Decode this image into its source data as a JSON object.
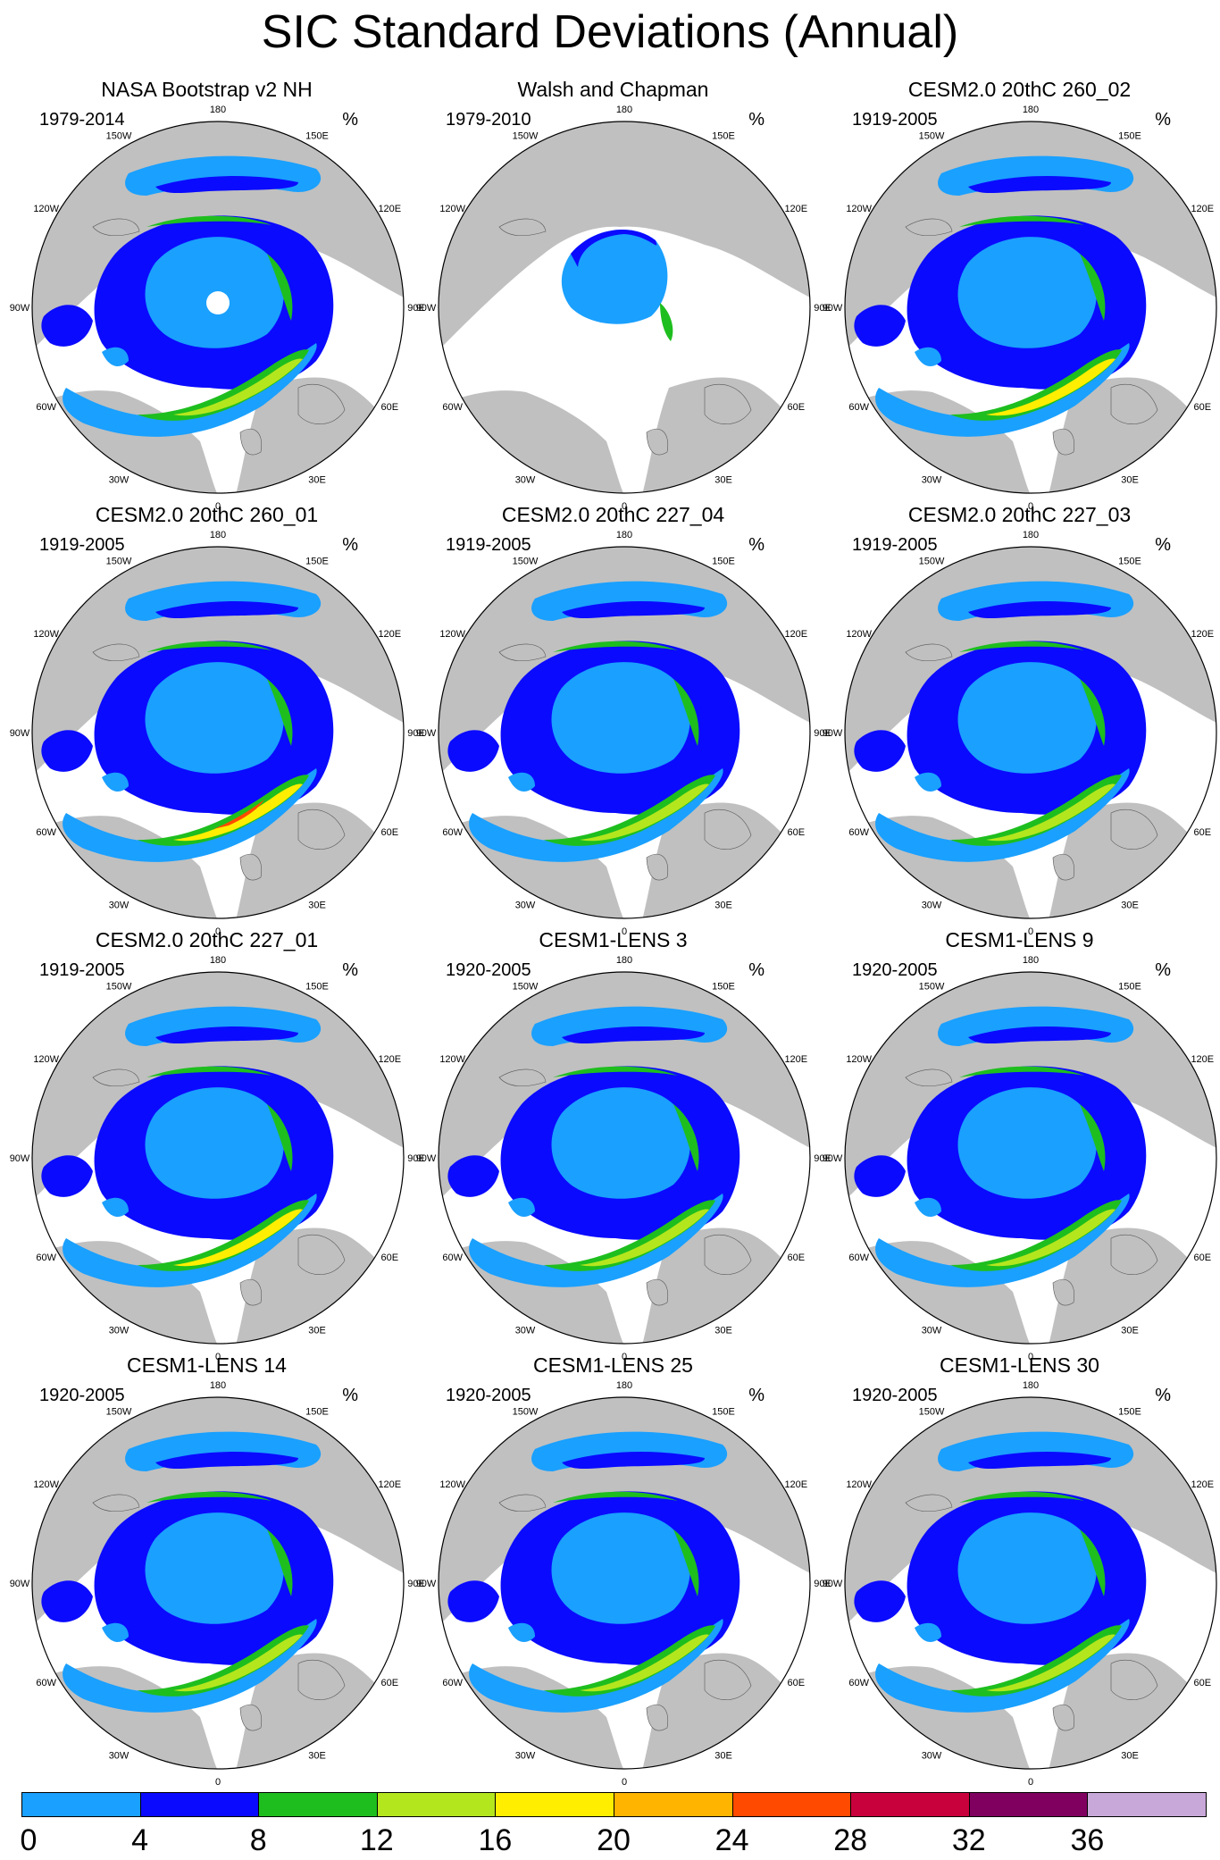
{
  "title": "SIC Standard Deviations (Annual)",
  "units_label": "%",
  "lon_labels": [
    "180",
    "150E",
    "120E",
    "90E",
    "60E",
    "30E",
    "0",
    "30W",
    "60W",
    "90W",
    "120W",
    "150W"
  ],
  "colors": {
    "land": "#c0c0c0",
    "ocean": "#ffffff",
    "bins": [
      "#1aa0ff",
      "#0a0aff",
      "#1ebe1e",
      "#b4e61e",
      "#ffee00",
      "#ffb400",
      "#ff4a00",
      "#c8003c",
      "#800060",
      "#c8a8d8"
    ]
  },
  "colorbar": {
    "ticks": [
      "0",
      "4",
      "8",
      "12",
      "16",
      "20",
      "24",
      "28",
      "32",
      "36"
    ]
  },
  "panels": [
    {
      "title": "NASA Bootstrap v2 NH",
      "period": "1979-2014",
      "pattern": "obs"
    },
    {
      "title": "Walsh and Chapman",
      "period": "1979-2010",
      "pattern": "walsh"
    },
    {
      "title": "CESM2.0 20thC 260_02",
      "period": "1919-2005",
      "pattern": "model-strong"
    },
    {
      "title": "CESM2.0 20thC 260_01",
      "period": "1919-2005",
      "pattern": "model-peak"
    },
    {
      "title": "CESM2.0 20thC 227_04",
      "period": "1919-2005",
      "pattern": "model"
    },
    {
      "title": "CESM2.0 20thC 227_03",
      "period": "1919-2005",
      "pattern": "model"
    },
    {
      "title": "CESM2.0 20thC 227_01",
      "period": "1919-2005",
      "pattern": "model-strong"
    },
    {
      "title": "CESM1-LENS 3",
      "period": "1920-2005",
      "pattern": "lens"
    },
    {
      "title": "CESM1-LENS 9",
      "period": "1920-2005",
      "pattern": "lens"
    },
    {
      "title": "CESM1-LENS 14",
      "period": "1920-2005",
      "pattern": "lens"
    },
    {
      "title": "CESM1-LENS 25",
      "period": "1920-2005",
      "pattern": "lens"
    },
    {
      "title": "CESM1-LENS 30",
      "period": "1920-2005",
      "pattern": "lens"
    }
  ]
}
